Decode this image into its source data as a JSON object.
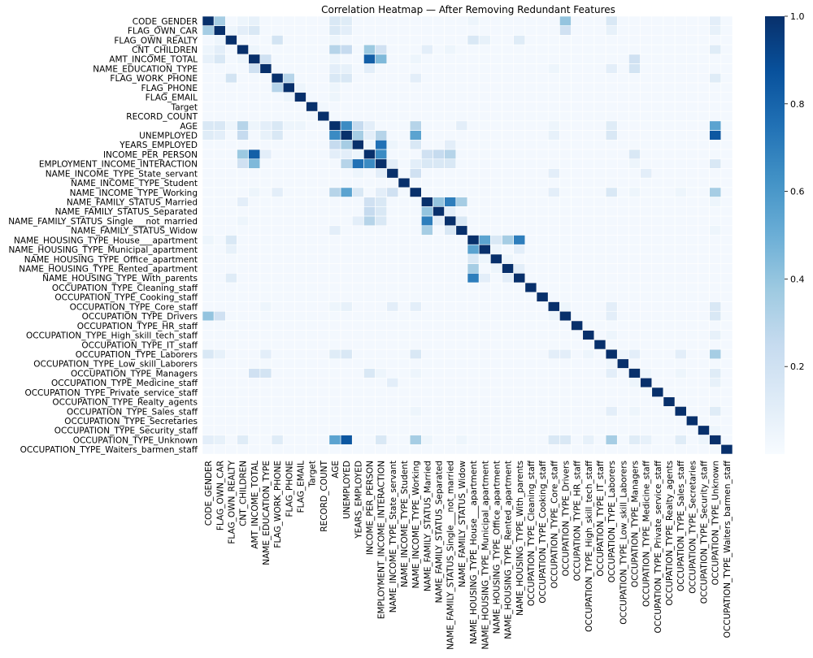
{
  "chart_data": {
    "type": "heatmap",
    "title": "Correlation Heatmap — After Removing Redundant Features",
    "labels": [
      "CODE_GENDER",
      "FLAG_OWN_CAR",
      "FLAG_OWN_REALTY",
      "CNT_CHILDREN",
      "AMT_INCOME_TOTAL",
      "NAME_EDUCATION_TYPE",
      "FLAG_WORK_PHONE",
      "FLAG_PHONE",
      "FLAG_EMAIL",
      "Target",
      "RECORD_COUNT",
      "AGE",
      "UNEMPLOYED",
      "YEARS_EMPLOYED",
      "INCOME_PER_PERSON",
      "EMPLOYMENT_INCOME_INTERACTION",
      "NAME_INCOME_TYPE_State_servant",
      "NAME_INCOME_TYPE_Student",
      "NAME_INCOME_TYPE_Working",
      "NAME_FAMILY_STATUS_Married",
      "NAME_FAMILY_STATUS_Separated",
      "NAME_FAMILY_STATUS_Single___not_married",
      "NAME_FAMILY_STATUS_Widow",
      "NAME_HOUSING_TYPE_House___apartment",
      "NAME_HOUSING_TYPE_Municipal_apartment",
      "NAME_HOUSING_TYPE_Office_apartment",
      "NAME_HOUSING_TYPE_Rented_apartment",
      "NAME_HOUSING_TYPE_With_parents",
      "OCCUPATION_TYPE_Cleaning_staff",
      "OCCUPATION_TYPE_Cooking_staff",
      "OCCUPATION_TYPE_Core_staff",
      "OCCUPATION_TYPE_Drivers",
      "OCCUPATION_TYPE_HR_staff",
      "OCCUPATION_TYPE_High_skill_tech_staff",
      "OCCUPATION_TYPE_IT_staff",
      "OCCUPATION_TYPE_Laborers",
      "OCCUPATION_TYPE_Low_skill_Laborers",
      "OCCUPATION_TYPE_Managers",
      "OCCUPATION_TYPE_Medicine_staff",
      "OCCUPATION_TYPE_Private_service_staff",
      "OCCUPATION_TYPE_Realty_agents",
      "OCCUPATION_TYPE_Sales_staff",
      "OCCUPATION_TYPE_Secretaries",
      "OCCUPATION_TYPE_Security_staff",
      "OCCUPATION_TYPE_Unknown",
      "OCCUPATION_TYPE_Waiters_barmen_staff"
    ],
    "cells": [
      [
        0,
        1,
        0.35
      ],
      [
        0,
        11,
        0.15
      ],
      [
        0,
        12,
        0.12
      ],
      [
        0,
        23,
        0.05
      ],
      [
        0,
        31,
        0.4
      ],
      [
        0,
        35,
        0.15
      ],
      [
        0,
        44,
        0.1
      ],
      [
        0,
        4,
        0.08
      ],
      [
        0,
        3,
        0.05
      ],
      [
        1,
        2,
        0.05
      ],
      [
        1,
        3,
        0.1
      ],
      [
        1,
        4,
        0.15
      ],
      [
        1,
        11,
        0.15
      ],
      [
        1,
        12,
        0.1
      ],
      [
        1,
        31,
        0.2
      ],
      [
        1,
        35,
        0.08
      ],
      [
        1,
        44,
        0.08
      ],
      [
        2,
        6,
        0.18
      ],
      [
        2,
        11,
        0.05
      ],
      [
        2,
        23,
        0.15
      ],
      [
        2,
        24,
        0.08
      ],
      [
        2,
        27,
        0.12
      ],
      [
        3,
        4,
        0.05
      ],
      [
        3,
        11,
        0.3
      ],
      [
        3,
        12,
        0.25
      ],
      [
        3,
        14,
        0.38
      ],
      [
        3,
        15,
        0.2
      ],
      [
        3,
        19,
        0.1
      ],
      [
        3,
        21,
        0.05
      ],
      [
        3,
        44,
        0.12
      ],
      [
        4,
        5,
        0.2
      ],
      [
        4,
        14,
        0.82
      ],
      [
        4,
        15,
        0.45
      ],
      [
        4,
        18,
        0.05
      ],
      [
        4,
        37,
        0.2
      ],
      [
        4,
        11,
        0.05
      ],
      [
        5,
        11,
        0.1
      ],
      [
        5,
        12,
        0.08
      ],
      [
        5,
        14,
        0.1
      ],
      [
        5,
        37,
        0.18
      ],
      [
        5,
        35,
        0.1
      ],
      [
        5,
        30,
        0.05
      ],
      [
        6,
        7,
        0.3
      ],
      [
        6,
        11,
        0.15
      ],
      [
        6,
        12,
        0.15
      ],
      [
        6,
        18,
        0.1
      ],
      [
        6,
        44,
        0.12
      ],
      [
        7,
        8,
        0.05
      ],
      [
        7,
        11,
        0.05
      ],
      [
        8,
        11,
        0.05
      ],
      [
        10,
        9,
        0.03
      ],
      [
        11,
        12,
        0.65
      ],
      [
        11,
        13,
        0.25
      ],
      [
        11,
        14,
        0.1
      ],
      [
        11,
        18,
        0.3
      ],
      [
        11,
        22,
        0.1
      ],
      [
        11,
        44,
        0.55
      ],
      [
        11,
        35,
        0.12
      ],
      [
        11,
        30,
        0.05
      ],
      [
        12,
        13,
        0.35
      ],
      [
        12,
        14,
        0.1
      ],
      [
        12,
        15,
        0.3
      ],
      [
        12,
        18,
        0.55
      ],
      [
        12,
        44,
        0.85
      ],
      [
        12,
        35,
        0.15
      ],
      [
        12,
        30,
        0.08
      ],
      [
        13,
        14,
        0.05
      ],
      [
        13,
        15,
        0.75
      ],
      [
        13,
        18,
        0.15
      ],
      [
        13,
        21,
        0.1
      ],
      [
        13,
        16,
        0.05
      ],
      [
        14,
        15,
        0.65
      ],
      [
        14,
        19,
        0.2
      ],
      [
        14,
        20,
        0.25
      ],
      [
        14,
        21,
        0.3
      ],
      [
        14,
        37,
        0.15
      ],
      [
        15,
        16,
        0.1
      ],
      [
        15,
        18,
        0.1
      ],
      [
        15,
        19,
        0.15
      ],
      [
        15,
        20,
        0.15
      ],
      [
        15,
        21,
        0.15
      ],
      [
        15,
        44,
        0.15
      ],
      [
        15,
        37,
        0.05
      ],
      [
        16,
        18,
        0.2
      ],
      [
        16,
        30,
        0.1
      ],
      [
        16,
        38,
        0.1
      ],
      [
        18,
        30,
        0.1
      ],
      [
        18,
        35,
        0.15
      ],
      [
        18,
        44,
        0.35
      ],
      [
        18,
        37,
        0.05
      ],
      [
        18,
        41,
        0.05
      ],
      [
        19,
        20,
        0.4
      ],
      [
        19,
        21,
        0.7
      ],
      [
        19,
        22,
        0.35
      ],
      [
        19,
        44,
        0.05
      ],
      [
        20,
        21,
        0.1
      ],
      [
        21,
        22,
        0.15
      ],
      [
        22,
        44,
        0.05
      ],
      [
        23,
        24,
        0.55
      ],
      [
        23,
        25,
        0.15
      ],
      [
        23,
        26,
        0.35
      ],
      [
        23,
        27,
        0.7
      ],
      [
        24,
        25,
        0.05
      ],
      [
        24,
        27,
        0.1
      ],
      [
        25,
        26,
        0.05
      ],
      [
        26,
        27,
        0.1
      ],
      [
        30,
        35,
        0.1
      ],
      [
        30,
        44,
        0.15
      ],
      [
        30,
        31,
        0.05
      ],
      [
        31,
        35,
        0.1
      ],
      [
        31,
        44,
        0.15
      ],
      [
        33,
        35,
        0.05
      ],
      [
        33,
        44,
        0.08
      ],
      [
        35,
        36,
        0.05
      ],
      [
        35,
        37,
        0.1
      ],
      [
        35,
        41,
        0.1
      ],
      [
        35,
        44,
        0.35
      ],
      [
        37,
        38,
        0.05
      ],
      [
        37,
        41,
        0.05
      ],
      [
        37,
        44,
        0.12
      ],
      [
        38,
        44,
        0.08
      ],
      [
        41,
        44,
        0.12
      ],
      [
        43,
        44,
        0.05
      ]
    ],
    "colorbar": {
      "min": 0,
      "max": 1.0,
      "ticks": [
        0.2,
        0.4,
        0.6,
        0.8,
        1.0
      ],
      "tick_labels": [
        "0.2",
        "0.4",
        "0.6",
        "0.8",
        "1.0"
      ]
    },
    "colormap": "Blues",
    "colors": {
      "low": "#f7fbff",
      "high": "#08306b"
    }
  }
}
